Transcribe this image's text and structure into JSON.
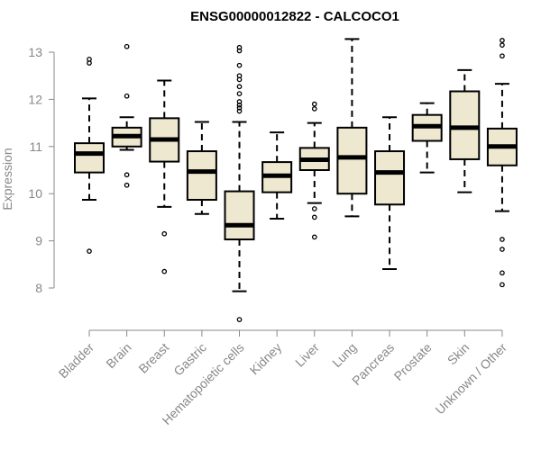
{
  "chart_data": {
    "type": "boxplot",
    "title": "ENSG00000012822 - CALCOCO1",
    "xlabel": "",
    "ylabel": "Expression",
    "ylim": [
      7.2,
      13.4
    ],
    "yticks": [
      8,
      9,
      10,
      11,
      12,
      13
    ],
    "box_fill": "#EEE8D0",
    "axis_color": "#888888",
    "categories": [
      "Bladder",
      "Brain",
      "Breast",
      "Gastric",
      "Hematopoietic cells",
      "Kidney",
      "Liver",
      "Lung",
      "Pancreas",
      "Prostate",
      "Skin",
      "Unknown / Other"
    ],
    "series": [
      {
        "name": "Bladder",
        "whisker_low": 9.87,
        "q1": 10.45,
        "median": 10.85,
        "q3": 11.07,
        "whisker_high": 12.02,
        "outliers": [
          8.78,
          12.77,
          12.85
        ]
      },
      {
        "name": "Brain",
        "whisker_low": 10.93,
        "q1": 11.0,
        "median": 11.22,
        "q3": 11.4,
        "whisker_high": 11.62,
        "outliers": [
          10.18,
          10.4,
          12.07,
          13.12
        ]
      },
      {
        "name": "Breast",
        "whisker_low": 9.72,
        "q1": 10.68,
        "median": 11.15,
        "q3": 11.6,
        "whisker_high": 12.4,
        "outliers": [
          8.35,
          9.15
        ]
      },
      {
        "name": "Gastric",
        "whisker_low": 9.57,
        "q1": 9.87,
        "median": 10.47,
        "q3": 10.9,
        "whisker_high": 11.52,
        "outliers": []
      },
      {
        "name": "Hematopoietic cells",
        "whisker_low": 7.93,
        "q1": 9.03,
        "median": 9.33,
        "q3": 10.05,
        "whisker_high": 11.52,
        "outliers": [
          7.33,
          11.75,
          11.82,
          11.88,
          11.95,
          12.12,
          12.27,
          12.42,
          12.5,
          12.72,
          13.03,
          13.1
        ]
      },
      {
        "name": "Kidney",
        "whisker_low": 9.47,
        "q1": 10.03,
        "median": 10.38,
        "q3": 10.67,
        "whisker_high": 11.3,
        "outliers": []
      },
      {
        "name": "Liver",
        "whisker_low": 9.8,
        "q1": 10.5,
        "median": 10.72,
        "q3": 10.97,
        "whisker_high": 11.5,
        "outliers": [
          9.08,
          9.5,
          9.68,
          11.8,
          11.9
        ]
      },
      {
        "name": "Lung",
        "whisker_low": 9.52,
        "q1": 10.0,
        "median": 10.77,
        "q3": 11.4,
        "whisker_high": 13.28,
        "outliers": []
      },
      {
        "name": "Pancreas",
        "whisker_low": 8.4,
        "q1": 9.77,
        "median": 10.45,
        "q3": 10.9,
        "whisker_high": 11.62,
        "outliers": []
      },
      {
        "name": "Prostate",
        "whisker_low": 10.45,
        "q1": 11.12,
        "median": 11.43,
        "q3": 11.67,
        "whisker_high": 11.92,
        "outliers": []
      },
      {
        "name": "Skin",
        "whisker_low": 10.03,
        "q1": 10.73,
        "median": 11.4,
        "q3": 12.17,
        "whisker_high": 12.62,
        "outliers": []
      },
      {
        "name": "Unknown / Other",
        "whisker_low": 9.63,
        "q1": 10.6,
        "median": 11.0,
        "q3": 11.38,
        "whisker_high": 12.33,
        "outliers": [
          8.07,
          8.32,
          8.82,
          9.03,
          12.92,
          13.15,
          13.25
        ]
      }
    ]
  }
}
